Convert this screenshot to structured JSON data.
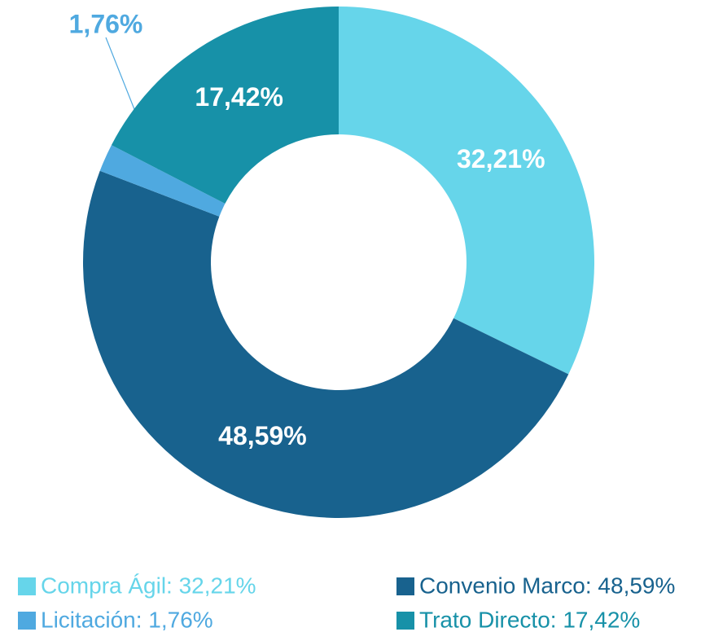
{
  "chart_data": {
    "type": "donut",
    "categories": [
      "Compra Ágil: 32,21%",
      "Convenio Marco: 48,59%",
      "Licitación: 1,76%",
      "Trato Directo: 17,42%"
    ],
    "values": [
      32.21,
      48.59,
      1.76,
      17.42
    ],
    "value_labels": [
      "32,21%",
      "48,59%",
      "1,76%",
      "17,42%"
    ],
    "colors": [
      "#66d5ea",
      "#18628e",
      "#4fa9e0",
      "#1791a8"
    ],
    "legend": "bottom"
  }
}
